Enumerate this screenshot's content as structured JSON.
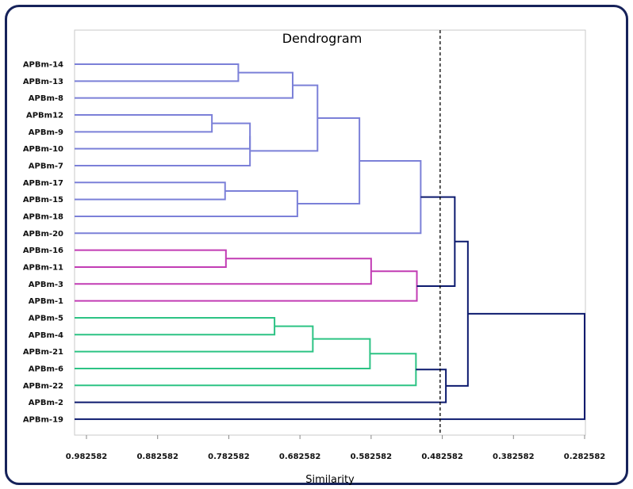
{
  "chart_data": {
    "type": "dendrogram",
    "title": "Dendrogram",
    "xlabel": "Similarity",
    "x_reversed": true,
    "xlim": [
      0.982582,
      0.282582
    ],
    "xticks": [
      "0.982582",
      "0.882582",
      "0.782582",
      "0.682582",
      "0.582582",
      "0.482582",
      "0.382582",
      "0.282582"
    ],
    "threshold_line": 0.4856,
    "leaves": [
      "APBm-14",
      "APBm-13",
      "APBm-8",
      "APBm12",
      "APBm-9",
      "APBm-10",
      "APBm-7",
      "APBm-17",
      "APBm-15",
      "APBm-18",
      "APBm-20",
      "APBm-16",
      "APBm-11",
      "APBm-3",
      "APBm-1",
      "APBm-5",
      "APBm-4",
      "APBm-21",
      "APBm-6",
      "APBm-22",
      "APBm-2",
      "APBm-19"
    ],
    "colors": {
      "cluster_blue": "#7b80d8",
      "cluster_magenta": "#c23cb4",
      "cluster_green": "#2cc384",
      "top": "#0c1a6e"
    },
    "merges": [
      {
        "id": "m1",
        "a": "APBm-14",
        "b": "APBm-13",
        "height": 0.7692,
        "color": "cluster_blue"
      },
      {
        "id": "m2",
        "a": "m1",
        "b": "APBm-8",
        "height": 0.6928,
        "color": "cluster_blue"
      },
      {
        "id": "m3",
        "a": "APBm12",
        "b": "APBm-9",
        "height": 0.8063,
        "color": "cluster_blue"
      },
      {
        "id": "m4",
        "a": "m3",
        "b": "APBm-10",
        "height": 0.7528,
        "color": "cluster_blue"
      },
      {
        "id": "m5",
        "a": "m4",
        "b": "APBm-7",
        "height": 0.7528,
        "color": "cluster_blue"
      },
      {
        "id": "m6",
        "a": "m2",
        "b": "m5",
        "height": 0.6579,
        "color": "cluster_blue"
      },
      {
        "id": "m7",
        "a": "APBm-17",
        "b": "APBm-15",
        "height": 0.7878,
        "color": "cluster_blue"
      },
      {
        "id": "m8",
        "a": "m7",
        "b": "APBm-18",
        "height": 0.6862,
        "color": "cluster_blue"
      },
      {
        "id": "m9",
        "a": "m6",
        "b": "m8",
        "height": 0.599,
        "color": "cluster_blue"
      },
      {
        "id": "m10",
        "a": "m9",
        "b": "APBm-20",
        "height": 0.5129,
        "color": "cluster_blue"
      },
      {
        "id": "m11",
        "a": "APBm-16",
        "b": "APBm-11",
        "height": 0.7866,
        "color": "cluster_magenta"
      },
      {
        "id": "m12",
        "a": "m11",
        "b": "APBm-3",
        "height": 0.5826,
        "color": "cluster_magenta"
      },
      {
        "id": "m13",
        "a": "m12",
        "b": "APBm-1",
        "height": 0.5183,
        "color": "cluster_magenta"
      },
      {
        "id": "m14",
        "a": "APBm-5",
        "b": "APBm-4",
        "height": 0.7183,
        "color": "cluster_green"
      },
      {
        "id": "m15",
        "a": "m14",
        "b": "APBm-21",
        "height": 0.6645,
        "color": "cluster_green"
      },
      {
        "id": "m16",
        "a": "m15",
        "b": "APBm-6",
        "height": 0.5842,
        "color": "cluster_green"
      },
      {
        "id": "m17",
        "a": "m16",
        "b": "APBm-22",
        "height": 0.5196,
        "color": "cluster_green"
      },
      {
        "id": "m18",
        "a": "m10",
        "b": "m13",
        "height": 0.465,
        "color": "top"
      },
      {
        "id": "m19",
        "a": "m17",
        "b": "APBm-2",
        "height": 0.4775,
        "color": "top"
      },
      {
        "id": "m20",
        "a": "m18",
        "b": "m19",
        "height": 0.4466,
        "color": "top"
      },
      {
        "id": "m21",
        "a": "m20",
        "b": "APBm-19",
        "height": 0.2826,
        "color": "top"
      }
    ]
  }
}
